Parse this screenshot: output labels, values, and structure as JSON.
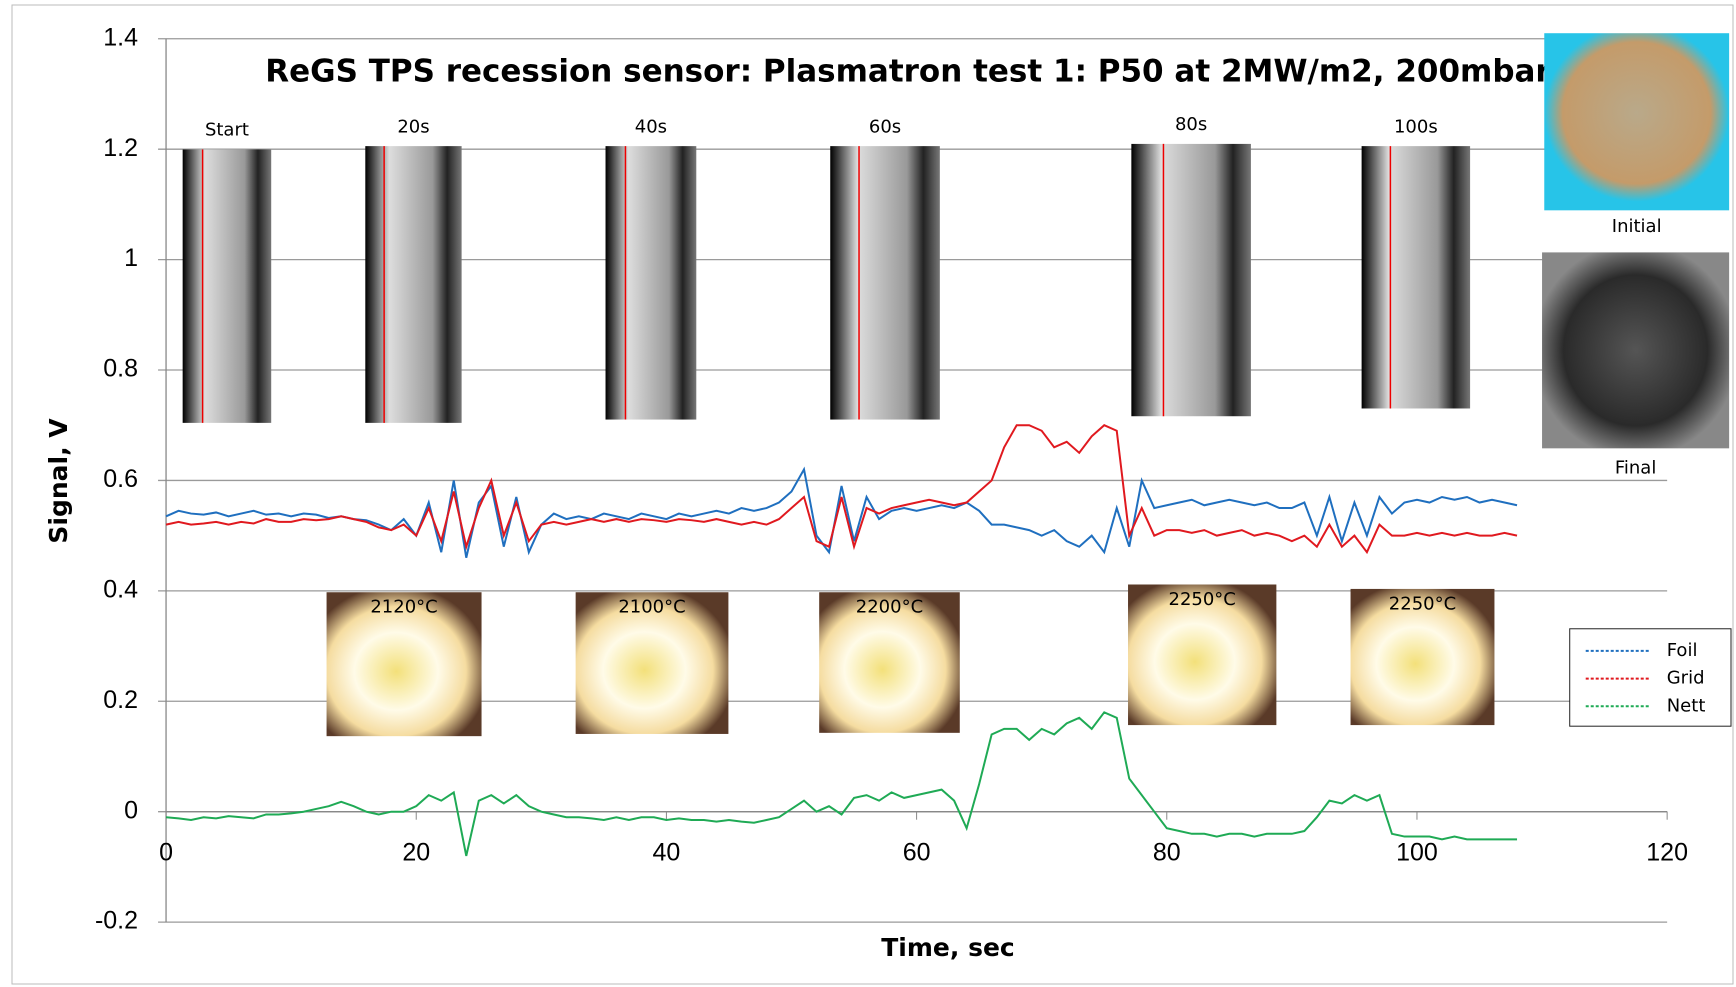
{
  "chart_data": {
    "type": "line",
    "title": "ReGS TPS recession sensor: Plasmatron test 1: P50 at 2MW/m2, 200mbar",
    "x_label": "Time, sec",
    "y_label": "Signal, V",
    "xlim": [
      0,
      120
    ],
    "xticks": [
      0,
      20,
      40,
      60,
      80,
      100,
      120
    ],
    "ylim": [
      -0.2,
      1.4
    ],
    "yticks": [
      -0.2,
      0,
      0.2,
      0.4,
      0.6,
      0.8,
      1,
      1.2,
      1.4
    ],
    "grid": true,
    "legend": "right",
    "x": [
      0,
      1,
      2,
      3,
      4,
      5,
      6,
      7,
      8,
      9,
      10,
      11,
      12,
      13,
      14,
      15,
      16,
      17,
      18,
      19,
      20,
      21,
      22,
      23,
      24,
      25,
      26,
      27,
      28,
      29,
      30,
      31,
      32,
      33,
      34,
      35,
      36,
      37,
      38,
      39,
      40,
      41,
      42,
      43,
      44,
      45,
      46,
      47,
      48,
      49,
      50,
      51,
      52,
      53,
      54,
      55,
      56,
      57,
      58,
      59,
      60,
      61,
      62,
      63,
      64,
      65,
      66,
      67,
      68,
      69,
      70,
      71,
      72,
      73,
      74,
      75,
      76,
      77,
      78,
      79,
      80,
      81,
      82,
      83,
      84,
      85,
      86,
      87,
      88,
      89,
      90,
      91,
      92,
      93,
      94,
      95,
      96,
      97,
      98,
      99,
      100,
      101,
      102,
      103,
      104,
      105,
      106,
      107,
      108
    ],
    "series": [
      {
        "name": "Foil",
        "color": "#1f6fbf",
        "values": [
          0.535,
          0.545,
          0.54,
          0.538,
          0.542,
          0.535,
          0.54,
          0.545,
          0.538,
          0.54,
          0.535,
          0.54,
          0.538,
          0.532,
          0.535,
          0.53,
          0.528,
          0.52,
          0.51,
          0.53,
          0.5,
          0.56,
          0.47,
          0.6,
          0.46,
          0.56,
          0.59,
          0.48,
          0.57,
          0.47,
          0.52,
          0.54,
          0.53,
          0.535,
          0.53,
          0.54,
          0.535,
          0.53,
          0.54,
          0.535,
          0.53,
          0.54,
          0.535,
          0.54,
          0.545,
          0.54,
          0.55,
          0.545,
          0.55,
          0.56,
          0.58,
          0.62,
          0.5,
          0.47,
          0.59,
          0.49,
          0.57,
          0.53,
          0.545,
          0.55,
          0.545,
          0.55,
          0.555,
          0.55,
          0.56,
          0.545,
          0.52,
          0.52,
          0.515,
          0.51,
          0.5,
          0.51,
          0.49,
          0.48,
          0.5,
          0.47,
          0.55,
          0.48,
          0.6,
          0.55,
          0.555,
          0.56,
          0.565,
          0.555,
          0.56,
          0.565,
          0.56,
          0.555,
          0.56,
          0.55,
          0.55,
          0.56,
          0.5,
          0.57,
          0.49,
          0.56,
          0.5,
          0.57,
          0.54,
          0.56,
          0.565,
          0.56,
          0.57,
          0.565,
          0.57,
          0.56,
          0.565,
          0.56,
          0.555
        ]
      },
      {
        "name": "Grid",
        "color": "#e0191f",
        "values": [
          0.52,
          0.525,
          0.52,
          0.522,
          0.525,
          0.52,
          0.525,
          0.522,
          0.53,
          0.525,
          0.525,
          0.53,
          0.528,
          0.53,
          0.535,
          0.53,
          0.525,
          0.515,
          0.51,
          0.52,
          0.5,
          0.55,
          0.49,
          0.58,
          0.48,
          0.55,
          0.6,
          0.5,
          0.56,
          0.49,
          0.52,
          0.525,
          0.52,
          0.525,
          0.53,
          0.525,
          0.53,
          0.525,
          0.53,
          0.528,
          0.525,
          0.53,
          0.528,
          0.525,
          0.53,
          0.525,
          0.52,
          0.525,
          0.52,
          0.53,
          0.55,
          0.57,
          0.49,
          0.48,
          0.57,
          0.48,
          0.55,
          0.54,
          0.55,
          0.555,
          0.56,
          0.565,
          0.56,
          0.555,
          0.56,
          0.58,
          0.6,
          0.66,
          0.7,
          0.7,
          0.69,
          0.66,
          0.67,
          0.65,
          0.68,
          0.7,
          0.69,
          0.5,
          0.55,
          0.5,
          0.51,
          0.51,
          0.505,
          0.51,
          0.5,
          0.505,
          0.51,
          0.5,
          0.505,
          0.5,
          0.49,
          0.5,
          0.48,
          0.52,
          0.48,
          0.5,
          0.47,
          0.52,
          0.5,
          0.5,
          0.505,
          0.5,
          0.505,
          0.5,
          0.505,
          0.5,
          0.5,
          0.505,
          0.5
        ]
      },
      {
        "name": "Nett",
        "color": "#1faa55",
        "values": [
          -0.01,
          -0.012,
          -0.015,
          -0.01,
          -0.012,
          -0.008,
          -0.01,
          -0.012,
          -0.005,
          -0.005,
          -0.003,
          0,
          0.005,
          0.01,
          0.018,
          0.01,
          0.0,
          -0.005,
          0.0,
          0.0,
          0.01,
          0.03,
          0.02,
          0.035,
          -0.08,
          0.02,
          0.03,
          0.015,
          0.03,
          0.01,
          0.0,
          -0.005,
          -0.01,
          -0.01,
          -0.012,
          -0.015,
          -0.01,
          -0.015,
          -0.01,
          -0.01,
          -0.015,
          -0.012,
          -0.015,
          -0.015,
          -0.018,
          -0.015,
          -0.018,
          -0.02,
          -0.015,
          -0.01,
          0.005,
          0.02,
          0.0,
          0.01,
          -0.005,
          0.025,
          0.03,
          0.02,
          0.035,
          0.025,
          0.03,
          0.035,
          0.04,
          0.02,
          -0.03,
          0.05,
          0.14,
          0.15,
          0.15,
          0.13,
          0.15,
          0.14,
          0.16,
          0.17,
          0.15,
          0.18,
          0.17,
          0.06,
          0.03,
          0.0,
          -0.03,
          -0.035,
          -0.04,
          -0.04,
          -0.045,
          -0.04,
          -0.04,
          -0.045,
          -0.04,
          -0.04,
          -0.04,
          -0.035,
          -0.01,
          0.02,
          0.015,
          0.03,
          0.02,
          0.03,
          -0.04,
          -0.045,
          -0.045,
          -0.045,
          -0.05,
          -0.045,
          -0.05,
          -0.05,
          -0.05,
          -0.05,
          -0.05
        ]
      }
    ],
    "xray_labels": [
      "Start",
      "20s",
      "40s",
      "60s",
      "80s",
      "100s"
    ],
    "temperature_labels": [
      "2120°C",
      "2100°C",
      "2200°C",
      "2250°C",
      "2250°C"
    ],
    "sample_labels": [
      "Initial",
      "Final"
    ]
  }
}
